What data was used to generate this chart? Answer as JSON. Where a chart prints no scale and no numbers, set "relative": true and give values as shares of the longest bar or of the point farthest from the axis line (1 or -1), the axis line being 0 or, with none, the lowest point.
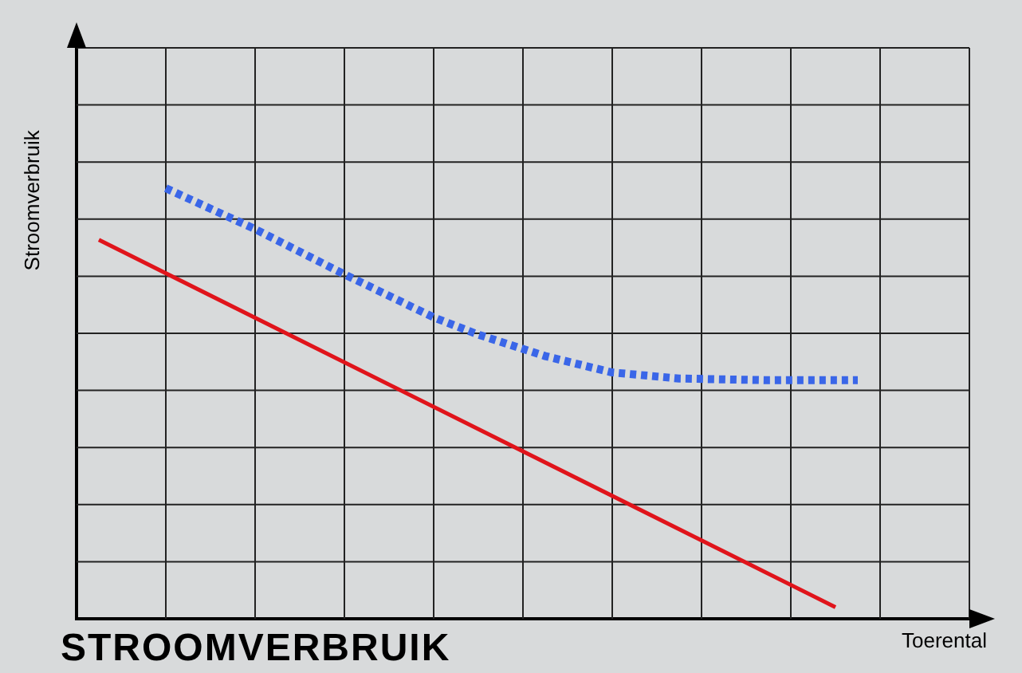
{
  "chart_data": {
    "type": "line",
    "title": "STROOMVERBRUIK",
    "xlabel": "Toerental",
    "ylabel": "Stroomverbruik",
    "relative": true,
    "categories": [
      null,
      null,
      null,
      null,
      null,
      null,
      null,
      null,
      null,
      null,
      null,
      null,
      null,
      null,
      null,
      null,
      null,
      null,
      null,
      null,
      null,
      null,
      null,
      null,
      null,
      null,
      null,
      null,
      null,
      null,
      null,
      null,
      null,
      null,
      null
    ],
    "grid": true,
    "marker": "none",
    "series": [
      {
        "color": "#e0141b",
        "line_style": "solid",
        "values": [
          0.88,
          null,
          null,
          null,
          null,
          null,
          null,
          null,
          null,
          null,
          null,
          null,
          null,
          null,
          null,
          null,
          null,
          null,
          null,
          null,
          null,
          null,
          null,
          null,
          null,
          null,
          null,
          null,
          null,
          null,
          null,
          null,
          null,
          0.027,
          null
        ]
      },
      {
        "color": "#3a66e8",
        "line_style": "dotted",
        "values": [
          null,
          null,
          null,
          1,
          null,
          null,
          null,
          0.905,
          null,
          null,
          null,
          0.8,
          null,
          null,
          null,
          0.7,
          null,
          0.66,
          null,
          null,
          0.61,
          null,
          null,
          0.572,
          null,
          null,
          0.558,
          null,
          null,
          null,
          0.554,
          null,
          null,
          null,
          0.554
        ]
      }
    ]
  }
}
